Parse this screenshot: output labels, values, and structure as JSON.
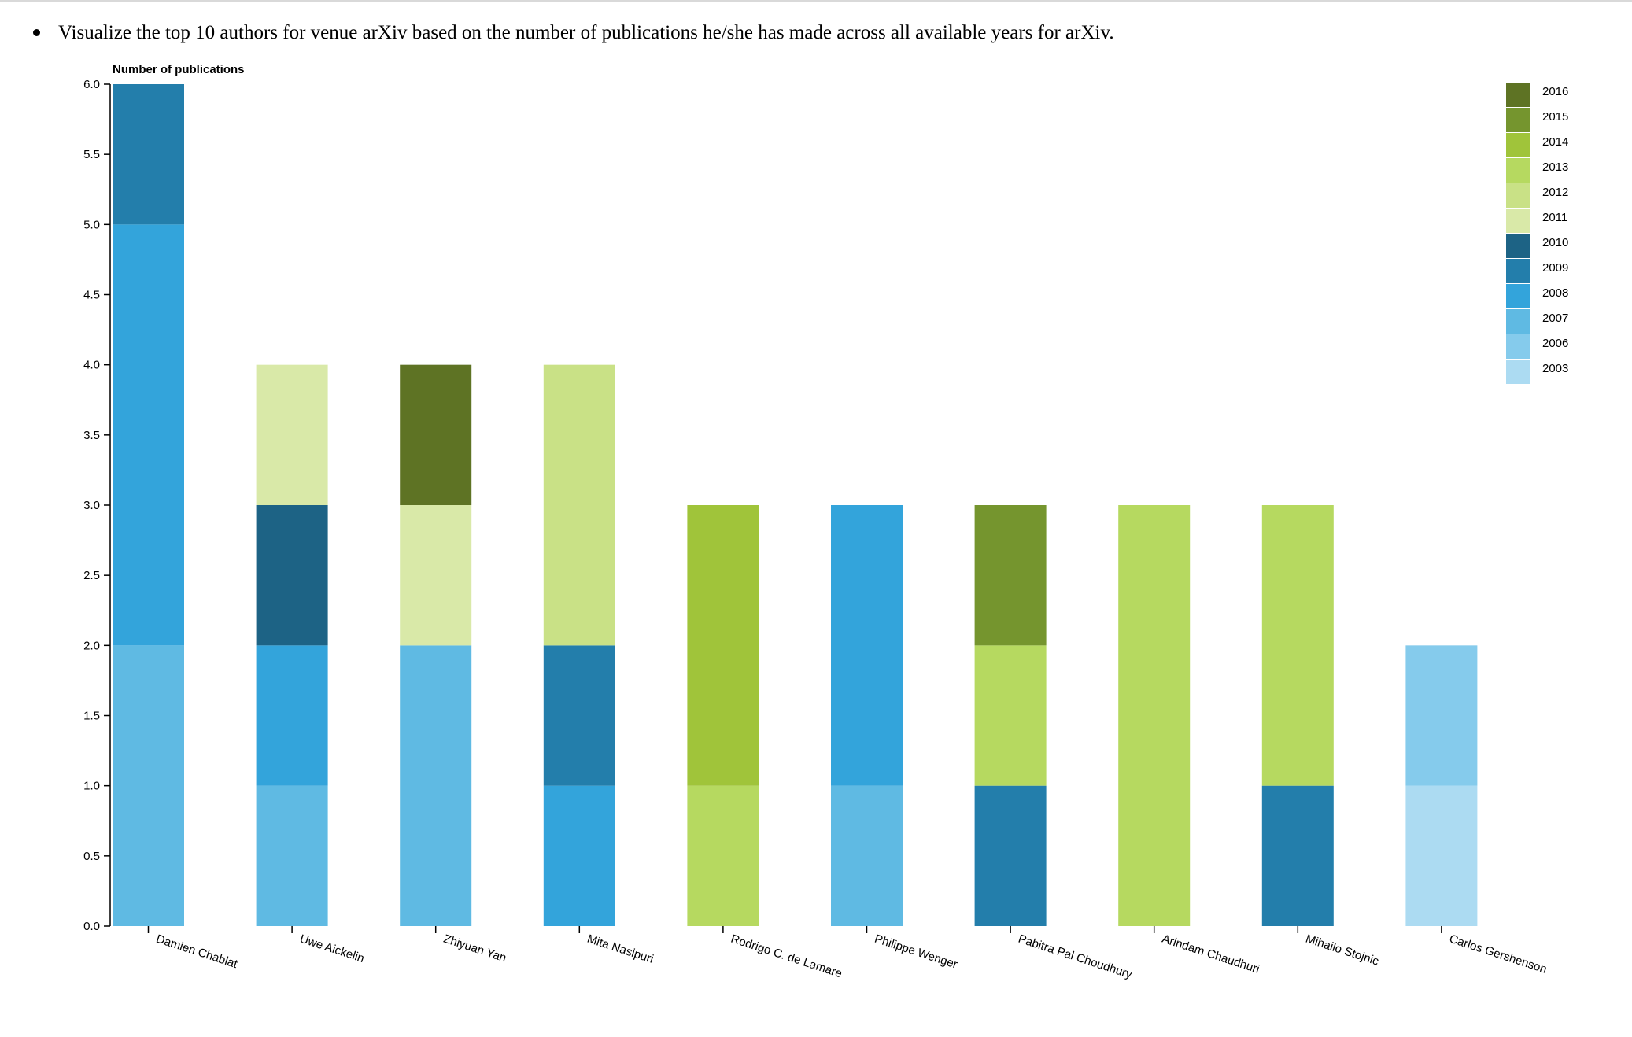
{
  "question": "Visualize the top 10 authors for venue arXiv based on the number of publications he/she has made across all available years for arXiv.",
  "chart_data": {
    "type": "bar",
    "stacked": true,
    "ylabel": "Number of publications",
    "ylim": [
      0,
      6
    ],
    "yticks": [
      "0.0",
      "0.5",
      "1.0",
      "1.5",
      "2.0",
      "2.5",
      "3.0",
      "3.5",
      "4.0",
      "4.5",
      "5.0",
      "5.5",
      "6.0"
    ],
    "legend_position": "top-right",
    "categories": [
      "Damien Chablat",
      "Uwe Aickelin",
      "Zhiyuan Yan",
      "Mita Nasipuri",
      "Rodrigo C. de Lamare",
      "Philippe Wenger",
      "Pabitra Pal Choudhury",
      "Arindam Chaudhuri",
      "Mihailo Stojnic",
      "Carlos Gershenson"
    ],
    "series": [
      {
        "name": "2003",
        "color": "#acdbf2",
        "values": [
          0,
          0,
          0,
          0,
          0,
          0,
          0,
          0,
          0,
          1
        ]
      },
      {
        "name": "2006",
        "color": "#85cbec",
        "values": [
          0,
          0,
          0,
          0,
          0,
          0,
          0,
          0,
          0,
          1
        ]
      },
      {
        "name": "2007",
        "color": "#5fbae3",
        "values": [
          2,
          1,
          2,
          0,
          0,
          1,
          0,
          0,
          0,
          0
        ]
      },
      {
        "name": "2008",
        "color": "#33a4db",
        "values": [
          3,
          1,
          0,
          1,
          0,
          2,
          0,
          0,
          0,
          0
        ]
      },
      {
        "name": "2009",
        "color": "#237eab",
        "values": [
          1,
          0,
          0,
          1,
          0,
          0,
          1,
          0,
          1,
          0
        ]
      },
      {
        "name": "2010",
        "color": "#1d6385",
        "values": [
          0,
          1,
          0,
          0,
          0,
          0,
          0,
          0,
          0,
          0
        ]
      },
      {
        "name": "2011",
        "color": "#d9e9a8",
        "values": [
          0,
          1,
          1,
          0,
          0,
          0,
          0,
          0,
          0,
          0
        ]
      },
      {
        "name": "2012",
        "color": "#c9e186",
        "values": [
          0,
          0,
          0,
          2,
          0,
          0,
          0,
          0,
          0,
          0
        ]
      },
      {
        "name": "2013",
        "color": "#b6d960",
        "values": [
          0,
          0,
          0,
          0,
          1,
          0,
          1,
          3,
          2,
          0
        ]
      },
      {
        "name": "2014",
        "color": "#a0c43a",
        "values": [
          0,
          0,
          0,
          0,
          2,
          0,
          0,
          0,
          0,
          0
        ]
      },
      {
        "name": "2015",
        "color": "#75952e",
        "values": [
          0,
          0,
          0,
          0,
          0,
          0,
          1,
          0,
          0,
          0
        ]
      },
      {
        "name": "2016",
        "color": "#5e7324",
        "values": [
          0,
          0,
          1,
          0,
          0,
          0,
          0,
          0,
          0,
          0
        ]
      }
    ]
  }
}
